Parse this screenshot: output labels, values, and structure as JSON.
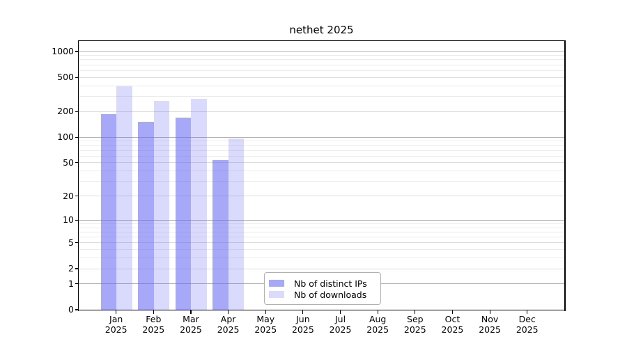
{
  "chart_data": {
    "type": "bar",
    "title": "nethet 2025",
    "categories": [
      "Jan",
      "Feb",
      "Mar",
      "Apr",
      "May",
      "Jun",
      "Jul",
      "Aug",
      "Sep",
      "Oct",
      "Nov",
      "Dec"
    ],
    "category_year": "2025",
    "series": [
      {
        "name": "Nb of distinct IPs",
        "color": "rgba(100,100,245,0.56)",
        "values": [
          185,
          152,
          170,
          54,
          0,
          0,
          0,
          0,
          0,
          0,
          0,
          0
        ]
      },
      {
        "name": "Nb of downloads",
        "color": "rgba(100,100,245,0.24)",
        "values": [
          390,
          265,
          283,
          97,
          0,
          0,
          0,
          0,
          0,
          0,
          0,
          0
        ]
      }
    ],
    "xlabel": "",
    "ylabel": "",
    "y_axis": {
      "scale": "log10(1+x)",
      "tick_labels": [
        "1000",
        "500",
        "200",
        "100",
        "50",
        "20",
        "10",
        "5",
        "2",
        "1",
        "0"
      ],
      "tick_values": [
        1000,
        500,
        200,
        100,
        50,
        20,
        10,
        5,
        2,
        1,
        0
      ],
      "range_top": 1320
    },
    "grid": {
      "on": true,
      "decade_values": [
        1,
        10,
        100,
        1000
      ],
      "decade_color": "#b3b3b3",
      "labeled_values": [
        2,
        5,
        20,
        50,
        200,
        500
      ],
      "labeled_color": "#dcdcdc",
      "minor_values": [
        3,
        4,
        6,
        7,
        8,
        9,
        30,
        40,
        60,
        70,
        80,
        90,
        300,
        400,
        600,
        700,
        800,
        900
      ],
      "minor_color": "#ebebeb"
    },
    "legend": {
      "position": "lower center"
    },
    "text_color": "#000000",
    "spine_color": "#000000"
  }
}
